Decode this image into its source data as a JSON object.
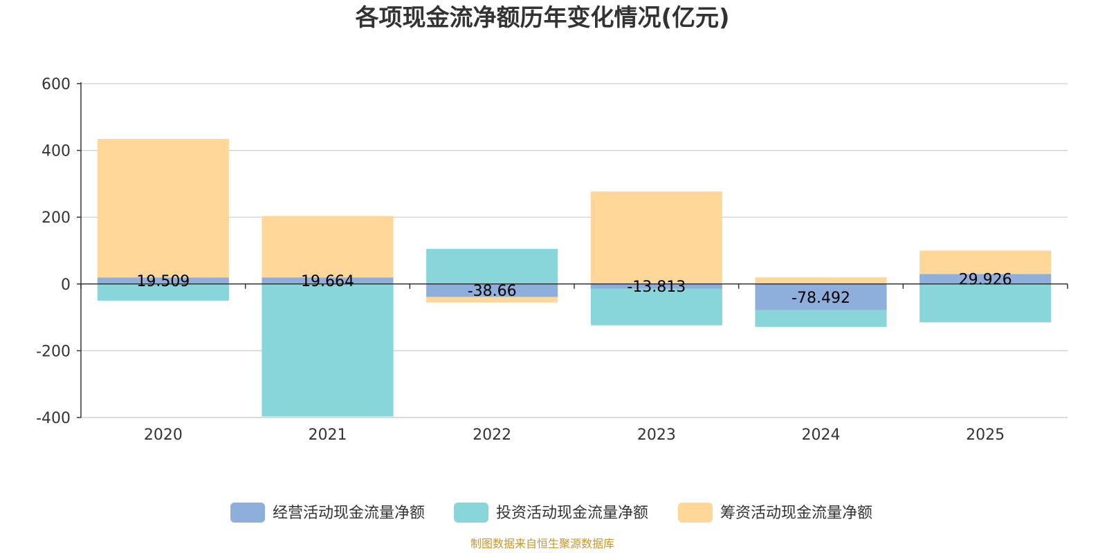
{
  "chart_data": {
    "type": "bar",
    "stacked": true,
    "title": "各项现金流净额历年变化情况(亿元)",
    "xlabel": "",
    "ylabel": "",
    "categories": [
      "2020",
      "2021",
      "2022",
      "2023",
      "2024",
      "2025"
    ],
    "ylim": [
      -400,
      600
    ],
    "yticks": [
      -400,
      -200,
      0,
      200,
      400,
      600
    ],
    "grid": true,
    "legend_position": "bottom",
    "series": [
      {
        "name": "经营活动现金流量净额",
        "color": "#8eaedb",
        "values": [
          19.509,
          19.664,
          -38.66,
          -13.813,
          -78.492,
          29.926
        ],
        "labels": [
          "19.509",
          "19.664",
          "-38.66",
          "-13.813",
          "-78.492",
          "29.926"
        ]
      },
      {
        "name": "投资活动现金流量净额",
        "color": "#88d6d9",
        "values": [
          -50,
          -397,
          105,
          -110,
          -50,
          -115
        ]
      },
      {
        "name": "筹资活动现金流量净额",
        "color": "#ffd899",
        "values": [
          415,
          184,
          -17,
          277,
          20,
          70
        ]
      }
    ]
  },
  "source": {
    "text": "制图数据来自恒生聚源数据库",
    "color": "#c8962d"
  }
}
